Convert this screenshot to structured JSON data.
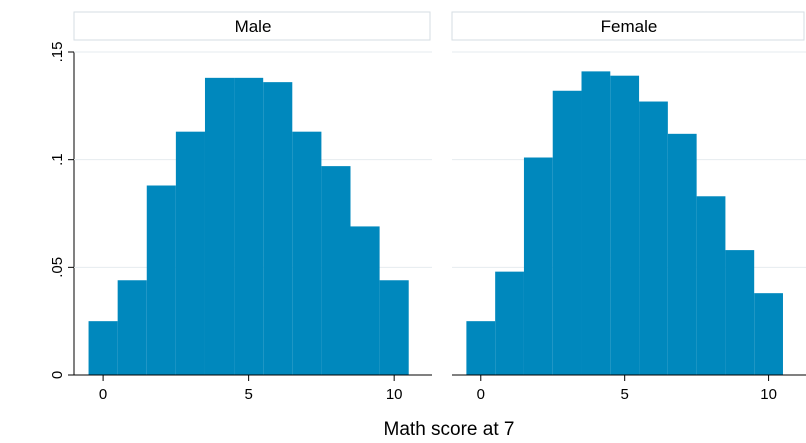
{
  "chart_data": {
    "type": "bar",
    "subtype": "faceted-histogram",
    "xlabel": "Math score at 7",
    "ylabel": "",
    "ylim": [
      0,
      0.15
    ],
    "yticks": [
      0,
      0.05,
      0.1,
      0.15
    ],
    "ytick_labels": [
      "0",
      ".05",
      ".1",
      ".15"
    ],
    "xlim": [
      -1.0,
      11.3
    ],
    "xticks": [
      0,
      5,
      10
    ],
    "xtick_labels": [
      "0",
      "5",
      "10"
    ],
    "grid": true,
    "bar_color": "#0088bd",
    "bin_centers": [
      0,
      1,
      2,
      3,
      4,
      5,
      6,
      7,
      8,
      9,
      10
    ],
    "bin_width": 1,
    "panels": [
      {
        "title": "Male",
        "values": [
          0.025,
          0.044,
          0.088,
          0.113,
          0.138,
          0.138,
          0.136,
          0.113,
          0.097,
          0.069,
          0.044
        ]
      },
      {
        "title": "Female",
        "values": [
          0.025,
          0.048,
          0.101,
          0.132,
          0.141,
          0.139,
          0.127,
          0.112,
          0.083,
          0.058,
          0.038
        ]
      }
    ]
  }
}
